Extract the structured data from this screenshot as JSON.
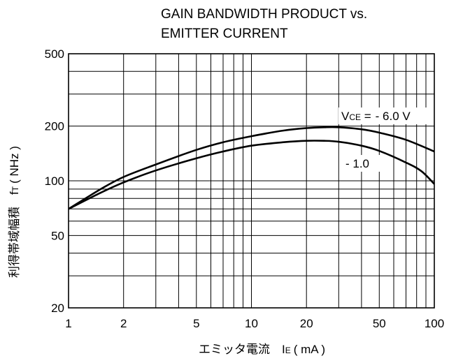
{
  "chart_data": {
    "type": "line",
    "title": "GAIN BANDWIDTH PRODUCT vs.",
    "subtitle": "EMITTER CURRENT",
    "xlabel": "エミッタ電流　I",
    "xlabel_sub": "E",
    "xlabel_unit": "( mA )",
    "ylabel": "利得帯域幅積　f",
    "ylabel_sub": "T",
    "ylabel_unit": "( NHz )",
    "xscale": "log",
    "yscale": "log",
    "xlim": [
      1,
      100
    ],
    "ylim": [
      20,
      500
    ],
    "grid": true,
    "x_tick_labels": [
      {
        "v": 1,
        "label": "1"
      },
      {
        "v": 2,
        "label": "2"
      },
      {
        "v": 5,
        "label": "5"
      },
      {
        "v": 10,
        "label": "10"
      },
      {
        "v": 20,
        "label": "20"
      },
      {
        "v": 50,
        "label": "50"
      },
      {
        "v": 100,
        "label": "100"
      }
    ],
    "y_tick_labels": [
      {
        "v": 20,
        "label": "20"
      },
      {
        "v": 50,
        "label": "50"
      },
      {
        "v": 100,
        "label": "100"
      },
      {
        "v": 200,
        "label": "200"
      },
      {
        "v": 500,
        "label": "500"
      }
    ],
    "x_gridlines": [
      1,
      2,
      3,
      4,
      5,
      6,
      7,
      8,
      9,
      10,
      20,
      30,
      40,
      50,
      60,
      70,
      80,
      90,
      100
    ],
    "y_gridlines": [
      20,
      30,
      40,
      50,
      60,
      70,
      80,
      90,
      100,
      200,
      300,
      400,
      500
    ],
    "series": [
      {
        "name": "- 6.0 V",
        "param_prefix": "V",
        "param_sub": "CE",
        "param_eq": " =",
        "x": [
          1,
          1.5,
          2,
          3,
          5,
          7,
          10,
          15,
          20,
          25,
          30,
          40,
          50,
          70,
          100
        ],
        "y": [
          70,
          90,
          105,
          123,
          148,
          163,
          176,
          189,
          195,
          197,
          197,
          192,
          184,
          168,
          145
        ]
      },
      {
        "name": "- 1.0",
        "x": [
          1,
          1.5,
          2,
          3,
          5,
          7,
          10,
          15,
          20,
          25,
          30,
          40,
          50,
          70,
          85,
          100
        ],
        "y": [
          70,
          86,
          98,
          114,
          133,
          145,
          156,
          163,
          166,
          166,
          164,
          156,
          146,
          126,
          113,
          96
        ]
      }
    ]
  }
}
